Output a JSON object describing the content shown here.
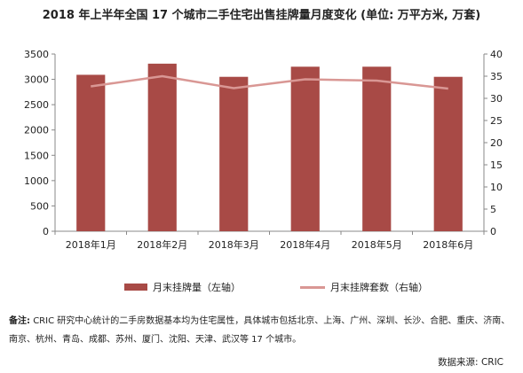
{
  "chart_data": {
    "type": "bar+line",
    "title": "2018 年上半年全国 17 个城市二手住宅出售挂牌量月度变化 (单位: 万平方米, 万套)",
    "categories": [
      "2018年1月",
      "2018年2月",
      "2018年3月",
      "2018年4月",
      "2018年5月",
      "2018年6月"
    ],
    "series": [
      {
        "name": "月末挂牌量（左轴）",
        "type": "bar",
        "axis": "left",
        "color": "#a84a46",
        "values": [
          3090,
          3310,
          3050,
          3250,
          3250,
          3050
        ]
      },
      {
        "name": "月末挂牌套数（右轴）",
        "type": "line",
        "axis": "right",
        "color": "#d99794",
        "values": [
          32.7,
          35.0,
          32.3,
          34.3,
          34.0,
          32.2
        ]
      }
    ],
    "y_left": {
      "min": 0,
      "max": 3500,
      "ticks": [
        0,
        500,
        1000,
        1500,
        2000,
        2500,
        3000,
        3500
      ]
    },
    "y_right": {
      "min": 0,
      "max": 40,
      "ticks": [
        0,
        5,
        10,
        15,
        20,
        25,
        30,
        35,
        40
      ]
    },
    "grid": false,
    "legend_position": "bottom"
  },
  "note": {
    "label": "备注:",
    "text": "CRIC 研究中心统计的二手房数据基本均为住宅属性，具体城市包括北京、上海、广州、深圳、长沙、合肥、重庆、济南、南京、杭州、青岛、成都、苏州、厦门、沈阳、天津、武汉等 17 个城市。"
  },
  "source": "数据来源:   CRIC"
}
